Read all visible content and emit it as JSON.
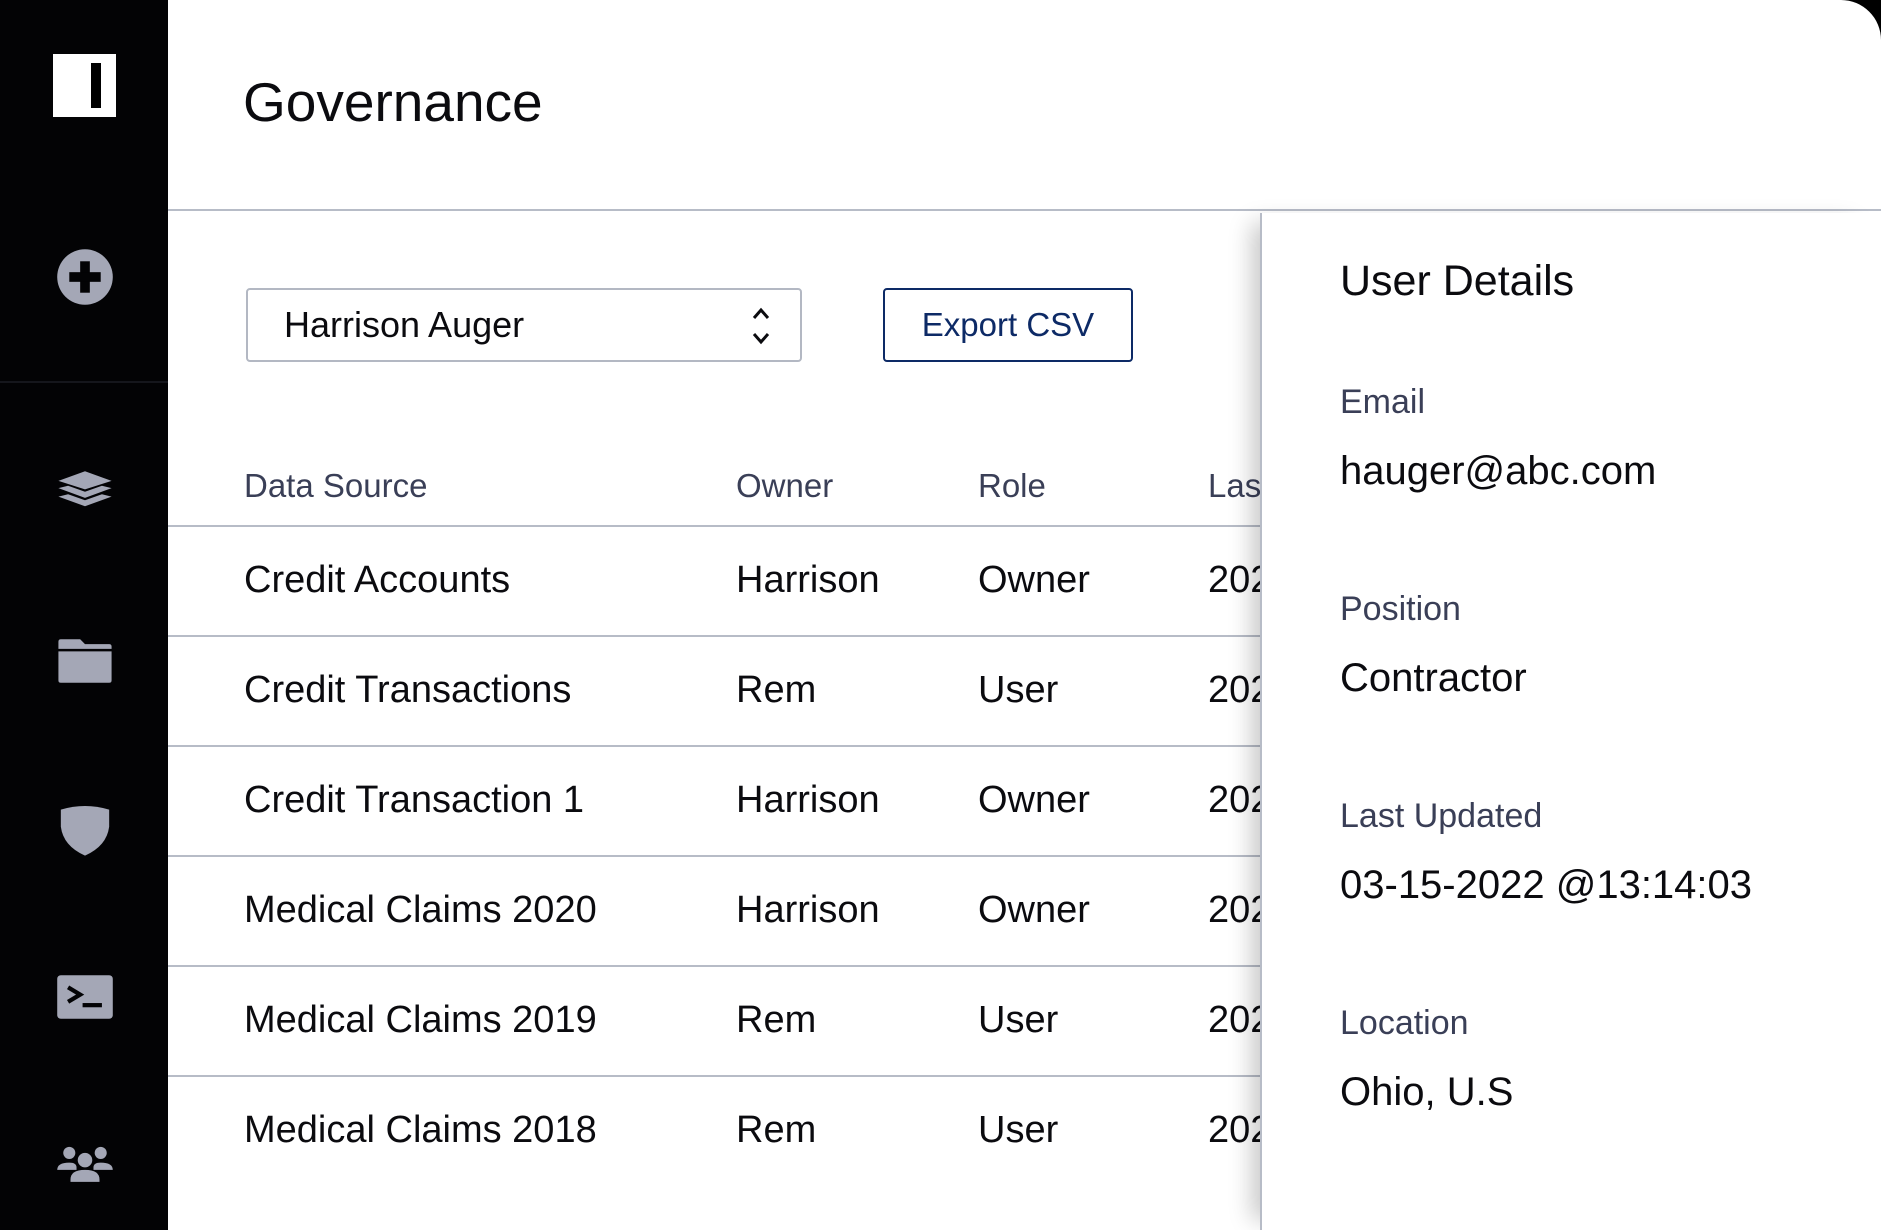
{
  "sidebar": {
    "items": [
      {
        "icon": "plus-circle-icon"
      },
      {
        "icon": "layers-icon"
      },
      {
        "icon": "folder-icon"
      },
      {
        "icon": "shield-icon"
      },
      {
        "icon": "terminal-icon"
      },
      {
        "icon": "users-icon"
      }
    ]
  },
  "header": {
    "title": "Governance"
  },
  "toolbar": {
    "user_select_value": "Harrison Auger",
    "export_label": "Export CSV"
  },
  "table": {
    "columns": [
      "Data Source",
      "Owner",
      "Role",
      "Las"
    ],
    "rows": [
      [
        "Credit Accounts",
        "Harrison",
        "Owner",
        "202"
      ],
      [
        "Credit Transactions",
        "Rem",
        "User",
        "202"
      ],
      [
        "Credit Transaction 1",
        "Harrison",
        "Owner",
        "202"
      ],
      [
        "Medical Claims 2020",
        "Harrison",
        "Owner",
        "202"
      ],
      [
        "Medical Claims 2019",
        "Rem",
        "User",
        "202"
      ],
      [
        "Medical Claims 2018",
        "Rem",
        "User",
        "202"
      ]
    ]
  },
  "panel": {
    "title": "User Details",
    "fields": [
      {
        "label": "Email",
        "value": "hauger@abc.com"
      },
      {
        "label": "Position",
        "value": "Contractor"
      },
      {
        "label": "Last Updated",
        "value": "03-15-2022 @13:14:03"
      },
      {
        "label": "Location",
        "value": "Ohio, U.S"
      }
    ]
  },
  "colors": {
    "sidebar": "#030305",
    "icon": "#a4a7b6",
    "accent": "#0d2a66",
    "divider": "#b7bcc7"
  }
}
